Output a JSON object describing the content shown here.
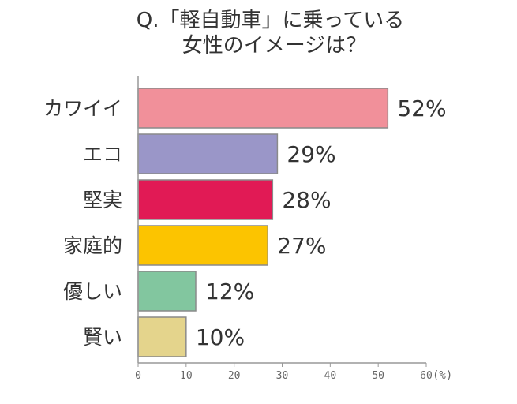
{
  "title_line1": "Q.「軽自動車」に乗っている",
  "title_line2": "女性のイメージは？",
  "chart_data": {
    "type": "bar",
    "orientation": "horizontal",
    "categories": [
      "カワイイ",
      "エコ",
      "堅実",
      "家庭的",
      "優しい",
      "賢い"
    ],
    "values": [
      52,
      29,
      28,
      27,
      12,
      10
    ],
    "value_labels": [
      "52%",
      "29%",
      "28%",
      "27%",
      "12%",
      "10%"
    ],
    "colors": [
      "#f1909a",
      "#9a96c8",
      "#e11a55",
      "#fcc400",
      "#82c69f",
      "#e4d48c"
    ],
    "xlim": [
      0,
      60
    ],
    "xticks": [
      0,
      10,
      20,
      30,
      40,
      50,
      60
    ],
    "unit_label": "(%)",
    "grid": false,
    "legend": "none"
  }
}
